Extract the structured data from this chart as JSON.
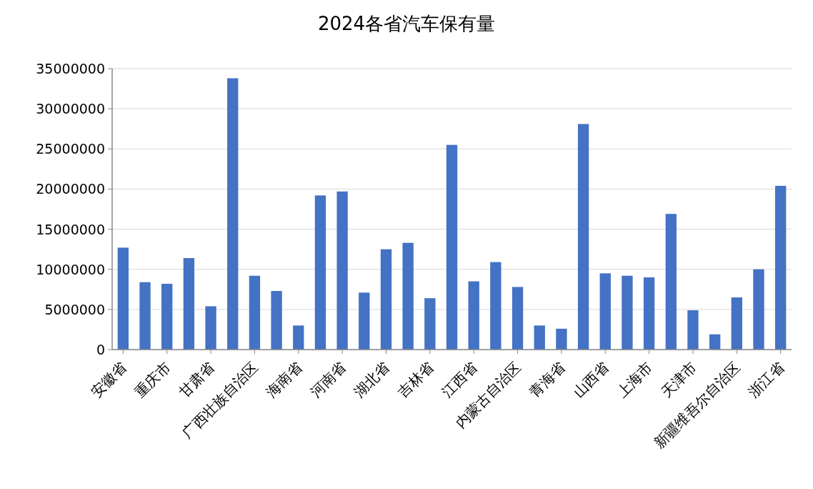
{
  "chart_data": {
    "type": "bar",
    "title": "2024各省汽车保有量",
    "categories": [
      "安徽省",
      null,
      "重庆市",
      null,
      "甘肃省",
      null,
      "广西壮族自治区",
      null,
      "海南省",
      null,
      "河南省",
      null,
      "湖北省",
      null,
      "吉林省",
      null,
      "江西省",
      null,
      "内蒙古自治区",
      null,
      "青海省",
      null,
      "山西省",
      null,
      "上海市",
      null,
      "天津市",
      null,
      "新疆维吾尔自治区",
      null,
      "浙江省"
    ],
    "values": [
      12700000,
      8400000,
      8200000,
      11400000,
      5400000,
      33800000,
      9200000,
      7300000,
      3000000,
      19200000,
      19700000,
      7100000,
      12500000,
      13300000,
      6400000,
      25500000,
      8500000,
      10900000,
      7800000,
      3000000,
      2600000,
      28100000,
      9500000,
      9200000,
      9000000,
      16900000,
      4900000,
      1900000,
      6500000,
      10000000,
      20400000
    ],
    "color": "#4472c4",
    "ylim": [
      0,
      35000000
    ],
    "yticks": [
      0,
      5000000,
      10000000,
      15000000,
      20000000,
      25000000,
      30000000,
      35000000
    ],
    "grid": "y"
  }
}
